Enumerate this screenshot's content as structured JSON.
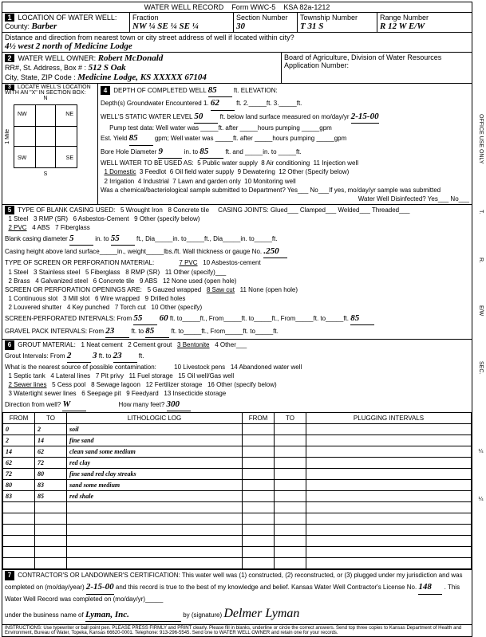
{
  "form_title": "WATER WELL RECORD",
  "form_no": "Form WWC-5",
  "ksa": "KSA 82a-1212",
  "sec1": {
    "label": "LOCATION OF WATER WELL:",
    "county_label": "County:",
    "county": "Barber",
    "fraction": "Fraction",
    "fraction_vals": "NW ¼  SE ¼  SE ¼",
    "section_label": "Section Number",
    "section": "30",
    "township_label": "Township Number",
    "township": "T  31  S",
    "range_label": "Range Number",
    "range": "R  12 W   E/W",
    "dist_label": "Distance and direction from nearest town or city street address of well if located within city?",
    "dist": "4½ west 2 north of Medicine Lodge"
  },
  "sec2": {
    "label": "WATER WELL OWNER:",
    "owner": "Robert McDonald",
    "addr_label": "RR#, St. Address, Box #  :",
    "addr": "512 S Oak",
    "city_label": "City, State, ZIP Code  :",
    "city": "Medicine Lodge, KS  XXXXX 67104",
    "board": "Board of Agriculture, Division of Water Resources",
    "app": "Application Number:"
  },
  "sec3": {
    "label": "LOCATE WELL'S LOCATION WITH AN \"X\" IN SECTION BOX:",
    "n": "N",
    "s": "S",
    "e": "E",
    "w": "W",
    "nw": "NW",
    "ne": "NE",
    "sw": "SW",
    "se": "SE",
    "mile": "1 Mile"
  },
  "sec4": {
    "label": "DEPTH OF COMPLETED WELL",
    "depth": "85",
    "elev": "ft. ELEVATION:",
    "gw_label": "Depth(s) Groundwater Encountered   1.",
    "gw1": "62",
    "gw_ft": "ft.   2._____ft.   3._____ft.",
    "static_label": "WELL'S STATIC WATER LEVEL",
    "static": "50",
    "static_rest": "ft. below land surface measured on mo/day/yr",
    "static_date": "2-15-00",
    "pump_label": "Pump test data:  Well water was _____ft. after _____hours pumping _____gpm",
    "yield_label": "Est. Yield",
    "yield": "85",
    "yield_rest": "gpm;  Well water was _____ft. after _____hours pumping _____gpm",
    "bore_label": "Bore Hole Diameter",
    "bore1": "9",
    "bore_in1": "in. to",
    "bore2": "85",
    "bore_rest": "ft. and _____in. to _____ft.",
    "use_label": "WELL WATER TO BE USED AS:",
    "u1": "1 Domestic",
    "u2": "2 Irrigation",
    "u3": "3 Feedlot",
    "u4": "4 Industrial",
    "u5": "5 Public water supply",
    "u6": "6 Oil field water supply",
    "u7": "7 Lawn and garden only",
    "u8": "8 Air conditioning",
    "u9": "9 Dewatering",
    "u10": "10 Monitoring well",
    "u11": "11 Injection well",
    "u12": "12 Other (Specify below)",
    "chem_label": "Was a chemical/bacteriological sample submitted to Department?  Yes___ No___If yes, mo/day/yr sample was submitted",
    "disinfect": "Water Well Disinfected?  Yes___  No___"
  },
  "sec5": {
    "label": "TYPE OF BLANK CASING USED:",
    "c1": "1 Steel",
    "c2": "2 PVC",
    "c3": "3 RMP (SR)",
    "c4": "4 ABS",
    "c5": "5 Wrought Iron",
    "c6": "6 Asbestos-Cement",
    "c7": "7 Fiberglass",
    "c8": "8 Concrete tile",
    "c9": "9 Other (specify below)",
    "joints": "CASING JOINTS: Glued___ Clamped___ Welded___ Threaded___",
    "diam_label": "Blank casing diameter",
    "d1": "5",
    "d_in": "in. to",
    "d2": "55",
    "d_rest": "ft., Dia_____in. to_____ft., Dia_____in. to_____ft.",
    "height_label": "Casing height above land surface_____in., weight_____lbs./ft. Wall thickness or gauge No.",
    "gauge": ".250",
    "screen_label": "TYPE OF SCREEN OR PERFORATION MATERIAL:",
    "s1": "1 Steel",
    "s2": "2 Brass",
    "s3": "3 Stainless steel",
    "s4": "4 Galvanized steel",
    "s5": "5 Fiberglass",
    "s6": "6 Concrete tile",
    "s7": "7 PVC",
    "s8": "8 RMP (SR)",
    "s9": "9 ABS",
    "s10": "10 Asbestos-cement",
    "s11": "11 Other (specify)___",
    "s12": "12 None used (open hole)",
    "open_label": "SCREEN OR PERFORATION OPENINGS ARE:",
    "o1": "1 Continuous slot",
    "o2": "2 Louvered shutter",
    "o3": "3 Mill slot",
    "o4": "4 Key punched",
    "o5": "5 Gauzed wrapped",
    "o6": "6 Wire wrapped",
    "o7": "7 Torch cut",
    "o8": "8 Saw cut",
    "o9": "9 Drilled holes",
    "o10": "10 Other (specify)",
    "o11": "11 None (open hole)",
    "perf_label": "SCREEN-PERFORATED INTERVALS:    From",
    "perf1": "55",
    "perf2": "60",
    "perf2b": "85",
    "perf_rest": "ft. to_____ft., From_____ft. to_____ft., From_____ft. to_____ft.",
    "gravel_label": "GRAVEL PACK INTERVALS:    From",
    "g1": "23",
    "g2": "85",
    "g_rest": "ft. to_____ft., From_____ft. to_____ft."
  },
  "sec6": {
    "label": "GROUT MATERIAL:",
    "g1": "1 Neat cement",
    "g2": "2 Cement grout",
    "g3": "3 Bentonite",
    "g4": "4 Other___",
    "int_label": "Grout Intervals:  From",
    "gi1": "2",
    "gi1b": "3",
    "gi2": "23",
    "contam": "What is the nearest source of possible contamination:",
    "p1": "1 Septic tank",
    "p2": "2 Sewer lines",
    "p3": "3 Watertight sewer lines",
    "p4": "4 Lateral lines",
    "p5": "5 Cess pool",
    "p6": "6 Seepage pit",
    "p7": "7 Pit privy",
    "p8": "8 Sewage lagoon",
    "p9": "9 Feedyard",
    "p10": "10 Livestock pens",
    "p11": "11 Fuel storage",
    "p12": "12 Fertilizer storage",
    "p13": "13 Insecticide storage",
    "p14": "14 Abandoned water well",
    "p15": "15 Oil well/Gas well",
    "p16": "16 Other (specify below)",
    "dir_label": "Direction from well?",
    "dir": "W",
    "feet_label": "How many feet?",
    "feet": "300"
  },
  "log": {
    "headers": [
      "FROM",
      "TO",
      "LITHOLOGIC LOG",
      "FROM",
      "TO",
      "PLUGGING INTERVALS"
    ],
    "rows": [
      [
        "0",
        "2",
        "soil",
        "",
        "",
        ""
      ],
      [
        "2",
        "14",
        "fine sand",
        "",
        "",
        ""
      ],
      [
        "14",
        "62",
        "clean sand some medium",
        "",
        "",
        ""
      ],
      [
        "62",
        "72",
        "red clay",
        "",
        "",
        ""
      ],
      [
        "72",
        "80",
        "fine sand red clay streaks",
        "",
        "",
        ""
      ],
      [
        "80",
        "83",
        "sand some medium",
        "",
        "",
        ""
      ],
      [
        "83",
        "85",
        "red shale",
        "",
        "",
        ""
      ],
      [
        "",
        "",
        "",
        "",
        "",
        ""
      ],
      [
        "",
        "",
        "",
        "",
        "",
        ""
      ],
      [
        "",
        "",
        "",
        "",
        "",
        ""
      ],
      [
        "",
        "",
        "",
        "",
        "",
        ""
      ],
      [
        "",
        "",
        "",
        "",
        "",
        ""
      ],
      [
        "",
        "",
        "",
        "",
        "",
        ""
      ]
    ]
  },
  "sec7": {
    "label": "CONTRACTOR'S OR LANDOWNER'S CERTIFICATION: This water well was (1) constructed, (2) reconstructed, or (3) plugged under my jurisdiction and was completed on (mo/day/year)",
    "date": "2-15-00",
    "rest": "and this record is true to the best of my knowledge and belief. Kansas Water Well Contractor's License No.",
    "license": "148",
    "rest2": ". This Water Well Record was completed on (mo/day/yr)_____",
    "business": "under the business name of",
    "company": "Lyman, Inc.",
    "by": "by (signature)",
    "sig": "Delmer Lyman"
  },
  "footer": "INSTRUCTIONS: Use typewriter or ball point pen. PLEASE PRESS FIRMLY and PRINT clearly. Please fill in blanks, underline or circle the correct answers. Send top three copies to Kansas Department of Health and Environment, Bureau of Water, Topeka, Kansas 66620-0001. Telephone: 913-296-5545. Send one to WATER WELL OWNER and retain one for your records.",
  "side": {
    "office": "OFFICE USE ONLY",
    "t": "T.",
    "r": "R.",
    "ew": "E/W",
    "sec": "SEC.",
    "q": "¼",
    "q2": "¼"
  }
}
